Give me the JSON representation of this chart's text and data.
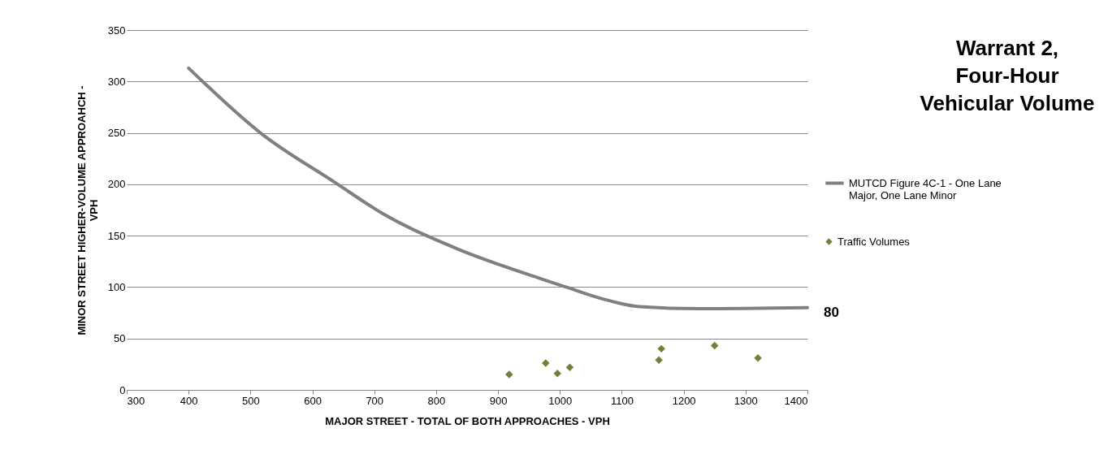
{
  "chart_data": {
    "type": "line",
    "title": "Warrant 2, Four-Hour Vehicular Volume",
    "xlabel": "MAJOR STREET - TOTAL OF BOTH APPROACHES - VPH",
    "ylabel": "MINOR STREET HIGHER-VOLUME APPROAHCH - VPH",
    "xlim": [
      300,
      1400
    ],
    "xticks": [
      300,
      400,
      500,
      600,
      700,
      800,
      900,
      1000,
      1100,
      1200,
      1300,
      1400
    ],
    "ylim": [
      0,
      350
    ],
    "yticks": [
      0,
      50,
      100,
      150,
      200,
      250,
      300,
      350
    ],
    "grid": "y",
    "legend": "right",
    "series": [
      {
        "name": "MUTCD Figure 4C-1 - One Lane Major, One Lane Minor",
        "color": "#808080",
        "marker": "none",
        "line_style": "solid",
        "x": [
          400,
          516,
          636,
          715,
          835,
          970,
          1010,
          1066,
          1129,
          1225,
          1400
        ],
        "values": [
          313,
          250,
          202,
          171,
          137,
          108,
          100,
          89,
          81,
          79,
          80
        ]
      },
      {
        "name": "Traffic Volumes",
        "type": "scatter",
        "color": "#7b7b3c",
        "marker": "diamond",
        "x": [
          918,
          977,
          996,
          1016,
          1160,
          1164,
          1250,
          1320
        ],
        "values": [
          15,
          26,
          16,
          22,
          29,
          40,
          43,
          31
        ]
      }
    ],
    "annotations": [
      {
        "text": "80",
        "x": 1400,
        "y": 80
      }
    ]
  }
}
